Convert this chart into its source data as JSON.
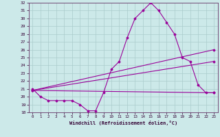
{
  "title": "",
  "xlabel": "Windchill (Refroidissement éolien,°C)",
  "ylabel": "",
  "background_color": "#cce9e9",
  "grid_color": "#aacccc",
  "line_color": "#990099",
  "xlim": [
    -0.5,
    23.5
  ],
  "ylim": [
    18,
    32
  ],
  "yticks": [
    18,
    19,
    20,
    21,
    22,
    23,
    24,
    25,
    26,
    27,
    28,
    29,
    30,
    31,
    32
  ],
  "xticks": [
    0,
    1,
    2,
    3,
    4,
    5,
    6,
    7,
    8,
    9,
    10,
    11,
    12,
    13,
    14,
    15,
    16,
    17,
    18,
    19,
    20,
    21,
    22,
    23
  ],
  "series1_x": [
    0,
    1,
    2,
    3,
    4,
    5,
    6,
    7,
    8,
    9,
    10,
    11,
    12,
    13,
    14,
    15,
    16,
    17,
    18,
    19,
    20,
    21,
    22,
    23
  ],
  "series1_y": [
    21.0,
    20.0,
    19.5,
    19.5,
    19.5,
    19.5,
    19.0,
    18.2,
    18.2,
    20.5,
    23.5,
    24.5,
    27.5,
    30.0,
    31.0,
    32.0,
    31.0,
    29.5,
    28.0,
    25.0,
    24.5,
    21.5,
    20.5,
    20.5
  ],
  "series2_x": [
    0,
    23
  ],
  "series2_y": [
    20.8,
    26.0
  ],
  "series3_x": [
    0,
    23
  ],
  "series3_y": [
    20.8,
    24.5
  ],
  "series4_x": [
    0,
    23
  ],
  "series4_y": [
    20.8,
    20.5
  ]
}
